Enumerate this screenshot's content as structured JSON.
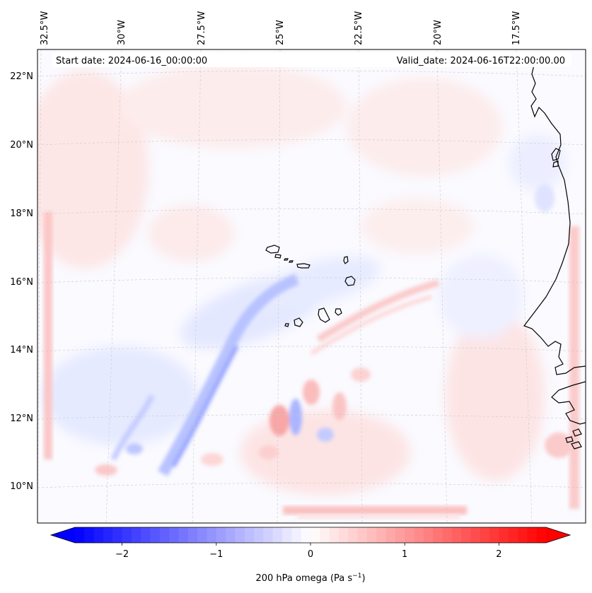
{
  "map": {
    "start_date_label": "Start date: 2024-06-16_00:00:00",
    "valid_date_label": "Valid_date: 2024-06-16T22:00:00.00",
    "lon_ticks": [
      "32.5°W",
      "30°W",
      "27.5°W",
      "25°W",
      "22.5°W",
      "20°W",
      "17.5°W"
    ],
    "lat_ticks": [
      "22°N",
      "20°N",
      "18°N",
      "16°N",
      "14°N",
      "12°N",
      "10°N"
    ],
    "field": "200 hPa omega",
    "colormap": "bwr",
    "coastline_color": "#000000"
  },
  "colorbar": {
    "label_text": "200 hPa omega (Pa s",
    "label_sup": "−1",
    "label_close": ")",
    "tick_labels": [
      "−2",
      "−1",
      "0",
      "1",
      "2"
    ],
    "tick_values": [
      -2,
      -1,
      0,
      1,
      2
    ],
    "range": [
      -2.5,
      2.5
    ],
    "extend": "both",
    "min_color": "#0000ff",
    "mid_color": "#ffffff",
    "max_color": "#ff0000"
  }
}
